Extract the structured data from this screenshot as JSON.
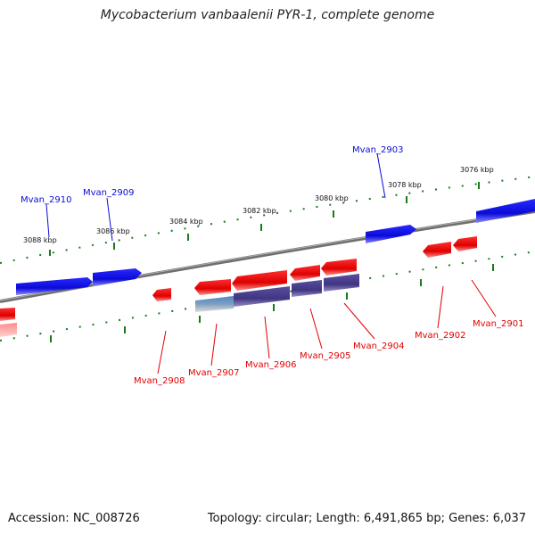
{
  "title": "Mycobacterium vanbaalenii PYR-1, complete genome",
  "footer": {
    "accession": "Accession: NC_008726",
    "topology": "Topology: circular; Length: 6,491,865 bp; Genes: 6,037"
  },
  "colors": {
    "plus_strand": "#0a0ad8",
    "minus_strand": "#e00000",
    "backbone": "#808080",
    "ticks": "#1a7a1a",
    "tick_label": "#111111",
    "purple_feature": "#4a3f8c",
    "steel_feature": "#6e8fb0"
  },
  "scale_labels": [
    "3088 kbp",
    "3086 kbp",
    "3084 kbp",
    "3082 kbp",
    "3080 kbp",
    "3078 kbp",
    "3076 kbp"
  ],
  "gene_labels": {
    "plus": [
      "Mvan_2910",
      "Mvan_2909",
      "Mvan_2903"
    ],
    "minus": [
      "Mvan_2908",
      "Mvan_2907",
      "Mvan_2906",
      "Mvan_2905",
      "Mvan_2904",
      "Mvan_2902",
      "Mvan_2901"
    ]
  }
}
